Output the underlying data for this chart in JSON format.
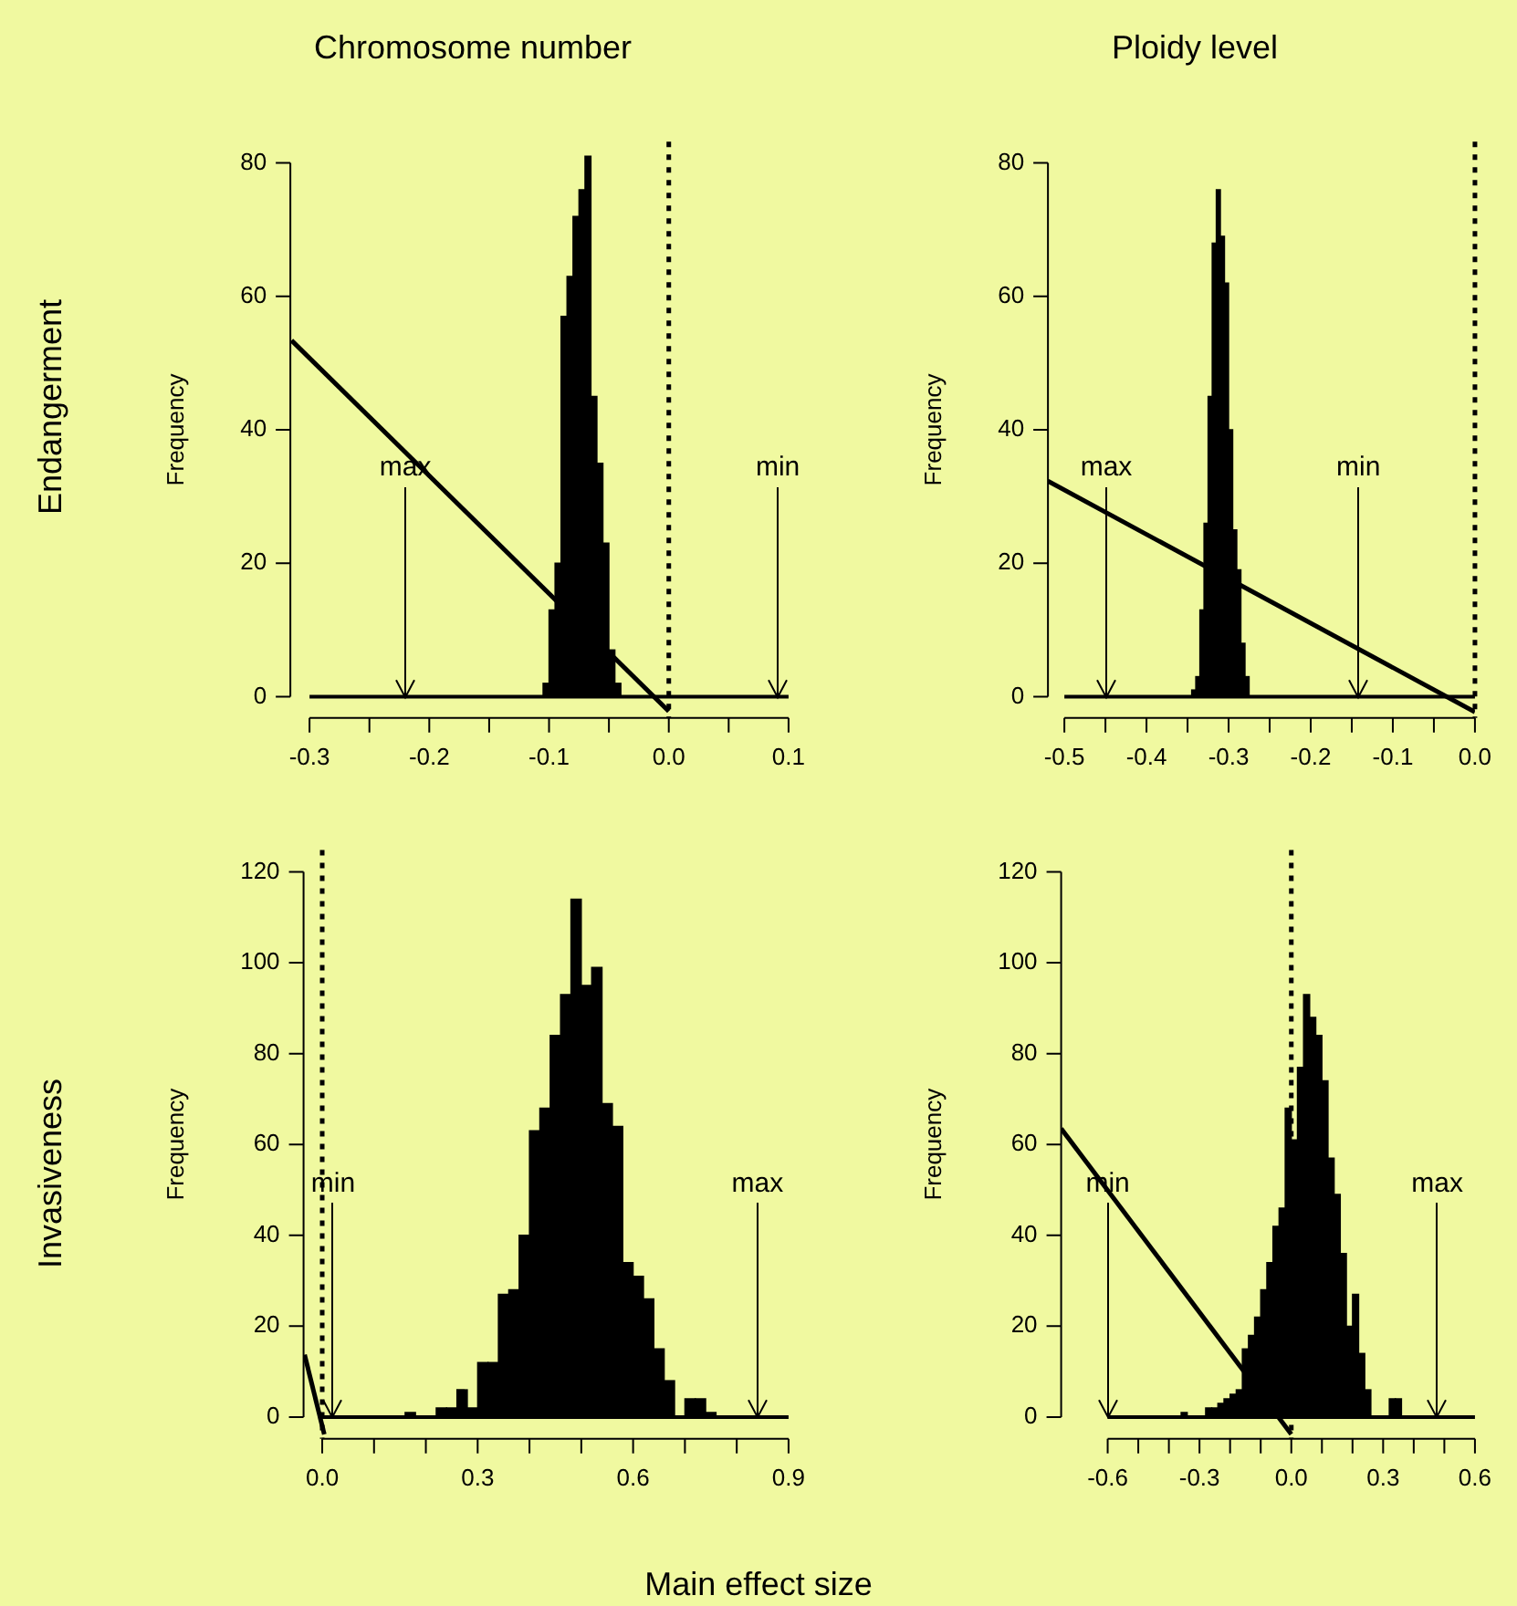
{
  "chart_data": [
    {
      "type": "histogram",
      "title": "Chromosome number",
      "ylabel": "Frequency",
      "xlim": [
        -0.316,
        0.1
      ],
      "ylim": [
        -3.2,
        83.2
      ],
      "xticks": [
        -0.3,
        {
          "value": -0.25,
          "label": null
        },
        -0.2,
        {
          "value": -0.15,
          "label": null
        },
        -0.1,
        {
          "value": -0.05,
          "label": null
        },
        {
          "value": 0,
          "label": "0.0"
        },
        {
          "value": 0.05,
          "label": null
        },
        0.1
      ],
      "yticks": [
        0,
        20,
        40,
        60,
        80
      ],
      "grid": false,
      "legend": false,
      "series": [
        {
          "type": "histogram",
          "color": "#000000",
          "bins": [
            -0.105,
            -0.1,
            -0.095,
            -0.09,
            -0.085,
            -0.08,
            -0.075,
            -0.07,
            -0.065,
            -0.06,
            -0.055,
            -0.05,
            -0.045,
            -0.04
          ],
          "values": [
            2,
            13,
            20,
            57,
            63,
            72,
            76,
            81,
            45,
            35,
            23,
            7,
            2
          ]
        },
        {
          "type": "line",
          "color": "#000000",
          "marker": "none",
          "x": [
            -0.315,
            0
          ],
          "values": [
            53.4,
            -2.2
          ]
        }
      ],
      "ref_lines": [
        {
          "axis": "x",
          "value": 0,
          "line_style": "dotted",
          "color": "#000000"
        },
        {
          "axis": "y",
          "value": 0,
          "color": "#000000"
        },
        {
          "axis": "x",
          "value": -0.22,
          "label": "max",
          "color": "#000000"
        },
        {
          "axis": "x",
          "value": 0.091,
          "label": "min",
          "color": "#000000"
        }
      ],
      "annotations": [
        "Endangerment"
      ]
    },
    {
      "type": "histogram",
      "title": "Ploidy level",
      "ylabel": "Frequency",
      "xlim": [
        -0.52,
        0
      ],
      "ylim": [
        -3.2,
        83.2
      ],
      "xticks": [
        -0.5,
        {
          "value": -0.45,
          "label": null
        },
        -0.4,
        {
          "value": -0.35,
          "label": null
        },
        -0.3,
        {
          "value": -0.25,
          "label": null
        },
        -0.2,
        {
          "value": -0.15,
          "label": null
        },
        -0.1,
        {
          "value": -0.05,
          "label": null
        },
        {
          "value": 0,
          "label": "0.0"
        }
      ],
      "yticks": [
        0,
        20,
        40,
        60,
        80
      ],
      "grid": false,
      "legend": false,
      "series": [
        {
          "type": "histogram",
          "color": "#000000",
          "bins": [
            -0.345,
            -0.34,
            -0.335,
            -0.33,
            -0.325,
            -0.32,
            -0.315,
            -0.31,
            -0.305,
            -0.3,
            -0.295,
            -0.29,
            -0.285,
            -0.28,
            -0.275
          ],
          "values": [
            1,
            3,
            13,
            26,
            45,
            68,
            76,
            69,
            62,
            40,
            25,
            19,
            8,
            3
          ]
        },
        {
          "type": "line",
          "color": "#000000",
          "marker": "none",
          "x": [
            -0.52,
            0
          ],
          "values": [
            32.3,
            -2.3
          ]
        }
      ],
      "ref_lines": [
        {
          "axis": "x",
          "value": 0,
          "line_style": "dotted",
          "color": "#000000"
        },
        {
          "axis": "y",
          "value": 0,
          "color": "#000000"
        },
        {
          "axis": "x",
          "value": -0.449,
          "label": "max",
          "color": "#000000"
        },
        {
          "axis": "x",
          "value": -0.142,
          "label": "min",
          "color": "#000000"
        }
      ]
    },
    {
      "type": "histogram",
      "ylabel": "Frequency",
      "xlabel": "Main effect size",
      "xlim": [
        -0.036,
        0.9
      ],
      "ylim": [
        -4.8,
        124.8
      ],
      "xticks": [
        {
          "value": 0,
          "label": "0.0"
        },
        {
          "value": 0.1,
          "label": null
        },
        {
          "value": 0.2,
          "label": null
        },
        0.3,
        {
          "value": 0.4,
          "label": null
        },
        {
          "value": 0.5,
          "label": null
        },
        0.6,
        {
          "value": 0.7,
          "label": null
        },
        {
          "value": 0.8,
          "label": null
        },
        0.9
      ],
      "yticks": [
        0,
        20,
        40,
        60,
        80,
        100,
        120
      ],
      "grid": false,
      "legend": false,
      "series": [
        {
          "type": "histogram",
          "color": "#000000",
          "bins": [
            0.16,
            0.18,
            0.2,
            0.22,
            0.24,
            0.26,
            0.28,
            0.3,
            0.32,
            0.34,
            0.36,
            0.38,
            0.4,
            0.42,
            0.44,
            0.46,
            0.48,
            0.5,
            0.52,
            0.54,
            0.56,
            0.58,
            0.6,
            0.62,
            0.64,
            0.66,
            0.68,
            0.7,
            0.72,
            0.74,
            0.76
          ],
          "values": [
            1,
            0,
            0,
            2,
            2,
            6,
            2,
            12,
            12,
            27,
            28,
            40,
            63,
            68,
            84,
            93,
            114,
            95,
            99,
            69,
            64,
            34,
            31,
            26,
            15,
            8,
            0,
            4,
            4,
            1
          ]
        },
        {
          "type": "line",
          "color": "#000000",
          "marker": "none",
          "x": [
            -0.034,
            0.004
          ],
          "values": [
            13.7,
            -3.8
          ]
        }
      ],
      "ref_lines": [
        {
          "axis": "x",
          "value": 0,
          "line_style": "dotted",
          "color": "#000000"
        },
        {
          "axis": "y",
          "value": 0,
          "color": "#000000"
        },
        {
          "axis": "x",
          "value": 0.021,
          "label": "min",
          "color": "#000000"
        },
        {
          "axis": "x",
          "value": 0.84,
          "label": "max",
          "color": "#000000"
        }
      ],
      "annotations": [
        "Invasiveness"
      ]
    },
    {
      "type": "histogram",
      "ylabel": "Frequency",
      "xlim": [
        -0.752,
        0.6
      ],
      "ylim": [
        -4.8,
        124.8
      ],
      "xticks": [
        -0.6,
        {
          "value": -0.5,
          "label": null
        },
        {
          "value": -0.4,
          "label": null
        },
        -0.3,
        {
          "value": -0.2,
          "label": null
        },
        {
          "value": -0.1,
          "label": null
        },
        {
          "value": 0,
          "label": "0.0"
        },
        {
          "value": 0.1,
          "label": null
        },
        {
          "value": 0.2,
          "label": null
        },
        0.3,
        {
          "value": 0.4,
          "label": null
        },
        {
          "value": 0.5,
          "label": null
        },
        0.6
      ],
      "yticks": [
        0,
        20,
        40,
        60,
        80,
        100,
        120
      ],
      "grid": false,
      "legend": false,
      "series": [
        {
          "type": "histogram",
          "color": "#000000",
          "bins": [
            -0.36,
            -0.34,
            -0.32,
            -0.3,
            -0.28,
            -0.26,
            -0.24,
            -0.22,
            -0.2,
            -0.18,
            -0.16,
            -0.14,
            -0.12,
            -0.1,
            -0.08,
            -0.06,
            -0.04,
            -0.02,
            0,
            0.02,
            0.04,
            0.06,
            0.08,
            0.1,
            0.12,
            0.14,
            0.16,
            0.18,
            0.2,
            0.22,
            0.24,
            0.26,
            0.28,
            0.3,
            0.32,
            0.34,
            0.36
          ],
          "values": [
            1,
            0,
            0,
            0,
            2,
            2,
            3,
            4,
            5,
            6,
            15,
            18,
            22,
            28,
            34,
            42,
            46,
            68,
            61,
            77,
            93,
            88,
            84,
            74,
            57,
            49,
            36,
            20,
            27,
            14,
            6,
            0,
            0,
            0,
            4,
            4
          ]
        },
        {
          "type": "line",
          "color": "#000000",
          "marker": "none",
          "x": [
            -0.752,
            0
          ],
          "values": [
            63.5,
            -3.8
          ]
        }
      ],
      "ref_lines": [
        {
          "axis": "x",
          "value": 0,
          "line_style": "dotted",
          "color": "#000000"
        },
        {
          "axis": "y",
          "value": 0,
          "color": "#000000"
        },
        {
          "axis": "x",
          "value": -0.6,
          "label": "min",
          "color": "#000000"
        },
        {
          "axis": "x",
          "value": 0.477,
          "label": "max",
          "color": "#000000"
        }
      ]
    }
  ]
}
